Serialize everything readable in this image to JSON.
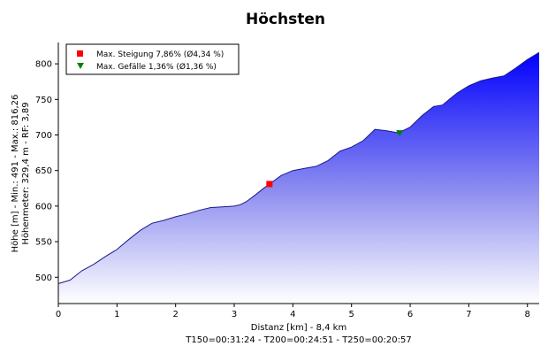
{
  "chart_data": {
    "type": "area",
    "title": "Höchsten",
    "xlabel": "Distanz [km] - 8,4 km",
    "xlabel2": "T150=00:31:24 - T200=00:24:51 - T250=00:20:57",
    "ylabel": "Höhe [m] - Min.: 491 - Max.: 816,26",
    "ylabel2": "Höhenmeter: 329,4 m - RF: 3,89",
    "xlim": [
      0,
      8.2
    ],
    "ylim": [
      463,
      830
    ],
    "xticks": [
      0,
      1,
      2,
      3,
      4,
      5,
      6,
      7,
      8
    ],
    "yticks": [
      500,
      550,
      600,
      650,
      700,
      750,
      800
    ],
    "grid": false,
    "legend_position": "top-left",
    "colors": {
      "fill_top": "#0000ff",
      "fill_bottom": "#ffffff",
      "line": "#1a1a8a",
      "marker_up": "#ff0000",
      "marker_down": "#008000"
    },
    "series": [
      {
        "x": [
          0,
          0.2,
          0.4,
          0.6,
          0.8,
          1.0,
          1.2,
          1.4,
          1.6,
          1.8,
          2.0,
          2.2,
          2.4,
          2.6,
          2.8,
          3.0,
          3.1,
          3.2,
          3.35,
          3.5,
          3.6,
          3.8,
          4.0,
          4.2,
          4.4,
          4.6,
          4.8,
          5.0,
          5.2,
          5.4,
          5.6,
          5.8,
          6.0,
          6.2,
          6.4,
          6.55,
          6.8,
          7.0,
          7.2,
          7.4,
          7.6,
          7.8,
          8.0,
          8.2
        ],
        "y": [
          491,
          496,
          509,
          518,
          529,
          539,
          553,
          566,
          576,
          580,
          585,
          589,
          594,
          598,
          599,
          600,
          602,
          606,
          615,
          625,
          631,
          643,
          650,
          653,
          656,
          664,
          677,
          683,
          692,
          708,
          706,
          703,
          711,
          727,
          740,
          742,
          759,
          769,
          776,
          780,
          783,
          794,
          806,
          816
        ]
      }
    ],
    "markers": [
      {
        "label": "Max. Steigung 7,86% (Ø4,34 %)",
        "shape": "square",
        "x": 3.6,
        "y": 631
      },
      {
        "label": "Max. Gefälle 1,36% (Ø1,36 %)",
        "shape": "triangle-down",
        "x": 5.82,
        "y": 703
      }
    ]
  }
}
